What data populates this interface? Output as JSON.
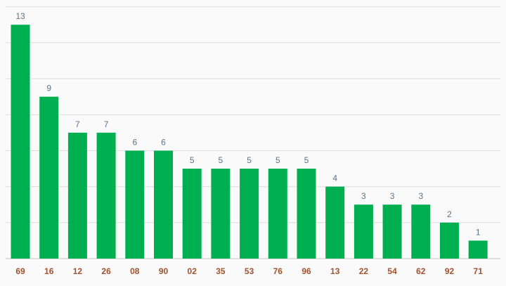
{
  "chart_data": {
    "type": "bar",
    "categories": [
      "69",
      "16",
      "12",
      "26",
      "08",
      "90",
      "02",
      "35",
      "53",
      "76",
      "96",
      "13",
      "22",
      "54",
      "62",
      "92",
      "71"
    ],
    "values": [
      13,
      9,
      7,
      7,
      6,
      6,
      5,
      5,
      5,
      5,
      5,
      4,
      3,
      3,
      3,
      2,
      1
    ],
    "title": "",
    "xlabel": "",
    "ylabel": "",
    "ylim": [
      0,
      14
    ],
    "grid": true,
    "bar_color": "#00b050",
    "value_label_color": "#5b7487",
    "category_label_color": "#a0522d",
    "gridline_color": "#dcdcdc"
  }
}
